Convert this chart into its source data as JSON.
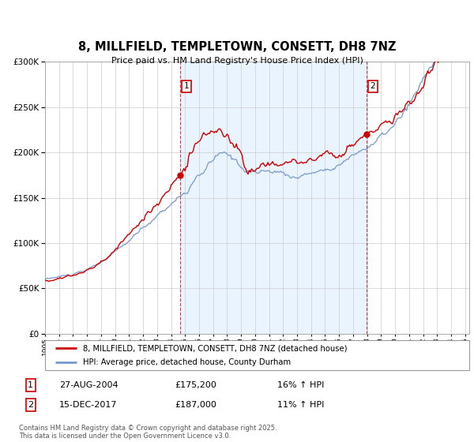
{
  "title": "8, MILLFIELD, TEMPLETOWN, CONSETT, DH8 7NZ",
  "subtitle": "Price paid vs. HM Land Registry's House Price Index (HPI)",
  "legend_line1": "8, MILLFIELD, TEMPLETOWN, CONSETT, DH8 7NZ (detached house)",
  "legend_line2": "HPI: Average price, detached house, County Durham",
  "footnote": "Contains HM Land Registry data © Crown copyright and database right 2025.\nThis data is licensed under the Open Government Licence v3.0.",
  "sale1_date": "27-AUG-2004",
  "sale1_price": "£175,200",
  "sale1_hpi": "16% ↑ HPI",
  "sale2_date": "15-DEC-2017",
  "sale2_price": "£187,000",
  "sale2_hpi": "11% ↑ HPI",
  "red_color": "#cc0000",
  "blue_color": "#7799cc",
  "shade_color": "#ddeeff",
  "grid_color": "#cccccc",
  "ylim": [
    0,
    300000
  ],
  "yticks": [
    0,
    50000,
    100000,
    150000,
    200000,
    250000,
    300000
  ],
  "sale1_x": 2004.65,
  "sale1_y": 175200,
  "sale2_x": 2017.96,
  "sale2_y": 187000,
  "xlim_start": 1995,
  "xlim_end": 2025.3
}
